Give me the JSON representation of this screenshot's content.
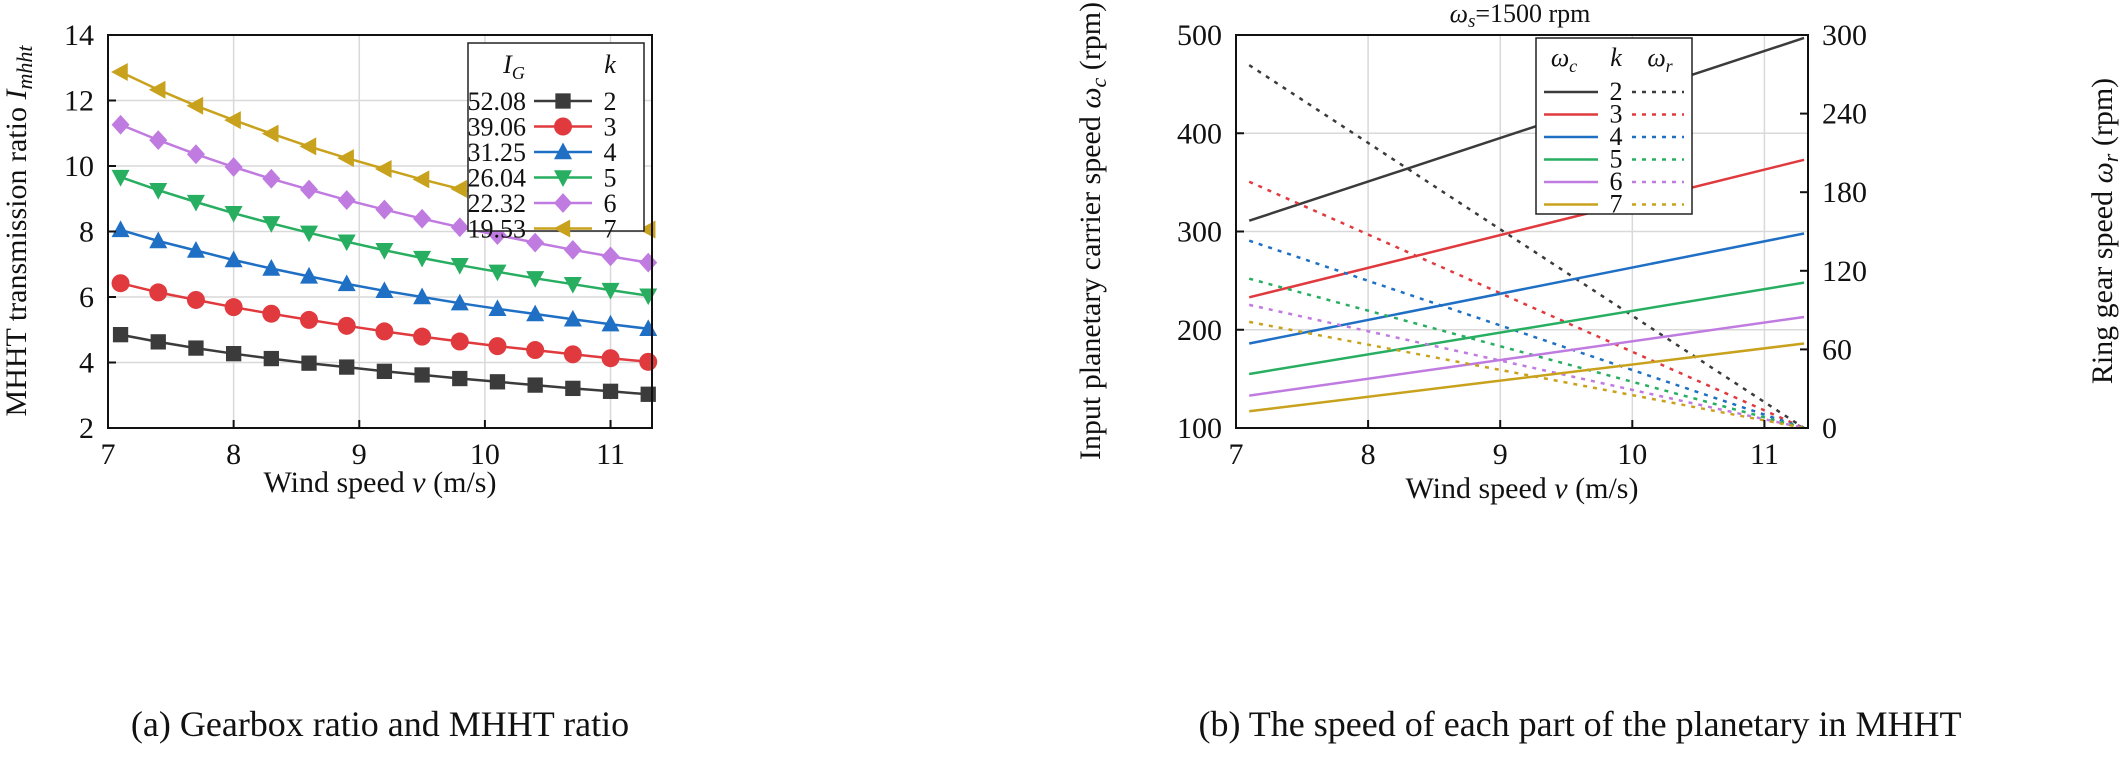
{
  "chart_data": [
    {
      "type": "line",
      "caption": "(a) Gearbox ratio and MHHT ratio",
      "xlabel": "Wind speed",
      "xlabel_var": "v",
      "xlabel_unit": "(m/s)",
      "ylabel": "MHHT transmission ratio",
      "ylabel_var": "I",
      "ylabel_sub": "mhht",
      "xlim": [
        7,
        11.33
      ],
      "ylim": [
        2,
        14
      ],
      "xticks": [
        7,
        8,
        9,
        10,
        11
      ],
      "yticks": [
        2,
        4,
        6,
        8,
        10,
        12,
        14
      ],
      "grid": true,
      "legend_position": "top-right",
      "legend_headers": {
        "ig_var": "I",
        "ig_sub": "G",
        "k": "k"
      },
      "x": [
        7.1,
        7.4,
        7.7,
        8.0,
        8.3,
        8.6,
        8.9,
        9.2,
        9.5,
        9.8,
        10.1,
        10.4,
        10.7,
        11.0,
        11.3
      ],
      "series": [
        {
          "name": "2",
          "ig": "52.08",
          "color": "#3b3b3b",
          "marker": "square",
          "values": [
            4.85,
            4.63,
            4.44,
            4.27,
            4.12,
            3.98,
            3.86,
            3.73,
            3.62,
            3.51,
            3.41,
            3.31,
            3.21,
            3.12,
            3.03
          ]
        },
        {
          "name": "3",
          "ig": "39.06",
          "color": "#e03a3e",
          "marker": "circle",
          "values": [
            6.42,
            6.14,
            5.91,
            5.69,
            5.49,
            5.3,
            5.12,
            4.95,
            4.79,
            4.64,
            4.5,
            4.38,
            4.25,
            4.13,
            4.02
          ]
        },
        {
          "name": "4",
          "ig": "31.25",
          "color": "#1f6fc5",
          "marker": "triangle-up",
          "values": [
            8.05,
            7.71,
            7.42,
            7.13,
            6.87,
            6.63,
            6.4,
            6.19,
            6.0,
            5.81,
            5.64,
            5.48,
            5.32,
            5.17,
            5.03
          ]
        },
        {
          "name": "5",
          "ig": "26.04",
          "color": "#27ae60",
          "marker": "triangle-down",
          "values": [
            9.66,
            9.26,
            8.9,
            8.56,
            8.25,
            7.96,
            7.69,
            7.43,
            7.19,
            6.97,
            6.77,
            6.57,
            6.39,
            6.21,
            6.04
          ]
        },
        {
          "name": "6",
          "ig": "22.32",
          "color": "#c07be0",
          "marker": "diamond",
          "values": [
            11.26,
            10.79,
            10.36,
            9.97,
            9.61,
            9.28,
            8.96,
            8.67,
            8.39,
            8.13,
            7.89,
            7.66,
            7.44,
            7.24,
            7.05
          ]
        },
        {
          "name": "7",
          "ig": "19.53",
          "color": "#c9a21d",
          "marker": "triangle-left",
          "values": [
            12.87,
            12.33,
            11.84,
            11.4,
            10.99,
            10.6,
            10.24,
            9.91,
            9.59,
            9.3,
            9.02,
            8.76,
            8.51,
            8.28,
            8.06
          ]
        }
      ]
    },
    {
      "type": "line",
      "caption": "(b) The speed of each part of the planetary in MHHT",
      "title_var": "ω",
      "title_sub": "s",
      "title_value": "=1500 rpm",
      "xlabel": "Wind speed",
      "xlabel_var": "v",
      "xlabel_unit": "(m/s)",
      "ylabel": "Input planetary carrier speed",
      "ylabel_var": "ω",
      "ylabel_sub": "c",
      "ylabel_unit": "(rpm)",
      "y2label": "Ring gear speed",
      "y2label_var": "ω",
      "y2label_sub": "r",
      "y2label_unit": "(rpm)",
      "xlim": [
        7,
        11.33
      ],
      "ylim": [
        100,
        500
      ],
      "y2lim": [
        0,
        300
      ],
      "xticks": [
        7,
        8,
        9,
        10,
        11
      ],
      "yticks": [
        100,
        200,
        300,
        400,
        500
      ],
      "y2ticks": [
        0,
        60,
        120,
        180,
        240,
        300
      ],
      "grid": true,
      "legend_position": "top-center",
      "legend_headers": {
        "wc_var": "ω",
        "wc_sub": "c",
        "k": "k",
        "wr_var": "ω",
        "wr_sub": "r"
      },
      "x": [
        7.1,
        11.3
      ],
      "series": [
        {
          "name": "2",
          "color": "#3b3b3b",
          "carrier": [
            311,
            497
          ],
          "ring": [
            277,
            0
          ]
        },
        {
          "name": "3",
          "color": "#e03a3e",
          "carrier": [
            233,
            373
          ],
          "ring": [
            188,
            0
          ]
        },
        {
          "name": "4",
          "color": "#1f6fc5",
          "carrier": [
            186,
            298
          ],
          "ring": [
            143,
            0
          ]
        },
        {
          "name": "5",
          "color": "#27ae60",
          "carrier": [
            155,
            248
          ],
          "ring": [
            114,
            0
          ]
        },
        {
          "name": "6",
          "color": "#c07be0",
          "carrier": [
            133,
            213
          ],
          "ring": [
            94,
            0
          ]
        },
        {
          "name": "7",
          "color": "#c9a21d",
          "carrier": [
            117,
            186
          ],
          "ring": [
            81,
            0
          ]
        }
      ]
    }
  ]
}
